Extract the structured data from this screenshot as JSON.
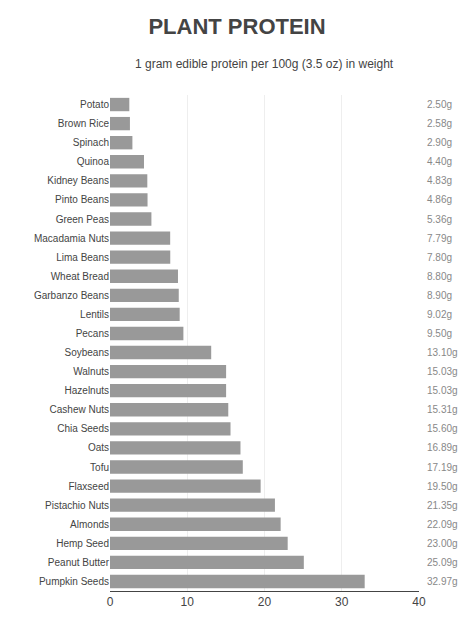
{
  "chart_data": {
    "type": "bar",
    "title": "PLANT PROTEIN",
    "subtitle": "1 gram edible protein per 100g (3.5 oz) in weight",
    "orientation": "horizontal",
    "categories": [
      "Potato",
      "Brown Rice",
      "Spinach",
      "Quinoa",
      "Kidney Beans",
      "Pinto Beans",
      "Green Peas",
      "Macadamia Nuts",
      "Lima Beans",
      "Wheat Bread",
      "Garbanzo Beans",
      "Lentils",
      "Pecans",
      "Soybeans",
      "Walnuts",
      "Hazelnuts",
      "Cashew Nuts",
      "Chia Seeds",
      "Oats",
      "Tofu",
      "Flaxseed",
      "Pistachio Nuts",
      "Almonds",
      "Hemp Seed",
      "Peanut Butter",
      "Pumpkin Seeds"
    ],
    "values": [
      2.5,
      2.58,
      2.9,
      4.4,
      4.83,
      4.86,
      5.36,
      7.79,
      7.8,
      8.8,
      8.9,
      9.02,
      9.5,
      13.1,
      15.03,
      15.03,
      15.31,
      15.6,
      16.89,
      17.19,
      19.5,
      21.35,
      22.09,
      23.0,
      25.09,
      32.97
    ],
    "value_labels": [
      "2.50g",
      "2.58g",
      "2.90g",
      "4.40g",
      "4.83g",
      "4.86g",
      "5.36g",
      "7.79g",
      "7.80g",
      "8.80g",
      "8.90g",
      "9.02g",
      "9.50g",
      "13.10g",
      "15.03g",
      "15.03g",
      "15.31g",
      "15.60g",
      "16.89g",
      "17.19g",
      "19.50g",
      "21.35g",
      "22.09g",
      "23.00g",
      "25.09g",
      "32.97g"
    ],
    "data_labels": true,
    "color": "#999999",
    "xlim": [
      0,
      40
    ],
    "xticks": [
      0,
      10,
      20,
      30,
      40
    ],
    "grid": true
  }
}
